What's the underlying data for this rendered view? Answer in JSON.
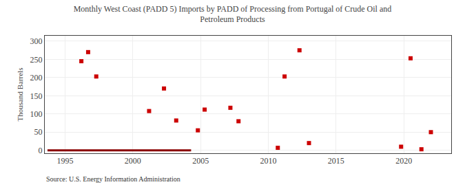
{
  "chart_data": {
    "type": "scatter",
    "title": "Monthly West Coast (PADD 5) Imports by PADD of Processing from Portugal of Crude Oil and\nPetroleum Products",
    "ylabel": "Thousand Barrels",
    "annotations": [
      "Source: U.S. Energy Information Administration"
    ],
    "series": [
      {
        "type": "line",
        "color": "#8b0000",
        "line_style": "solid",
        "x": [
          1993.7,
          2004.3
        ],
        "values": [
          0,
          0
        ]
      },
      {
        "type": "scatter",
        "color": "#cc0000",
        "marker": "square",
        "x": [
          1996.2,
          1996.7,
          1997.3,
          2001.2,
          2002.3,
          2003.2,
          2004.8,
          2005.3,
          2007.2,
          2007.8,
          2010.7,
          2011.2,
          2012.3,
          2013.0,
          2019.8,
          2020.5,
          2021.3,
          2022.0
        ],
        "values": [
          245,
          270,
          203,
          108,
          170,
          82,
          55,
          112,
          117,
          80,
          7,
          203,
          275,
          20,
          10,
          253,
          3,
          50
        ]
      }
    ],
    "xlim": [
      1993.5,
      2023.5
    ],
    "xticks": [
      1995,
      2000,
      2005,
      2010,
      2015,
      2020
    ],
    "ylim": [
      -8,
      315
    ],
    "yticks": [
      0,
      50,
      100,
      150,
      200,
      250,
      300
    ],
    "grid": true
  }
}
